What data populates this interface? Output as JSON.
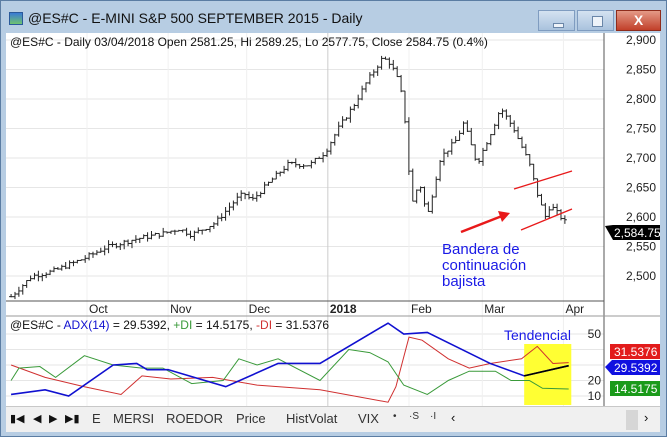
{
  "window": {
    "title": "@ES#C - E-MINI S&P 500 SEPTEMBER 2015 - Daily",
    "close_label": "X"
  },
  "price_panel": {
    "header": "@ES#C - Daily 03/04/2018 Open 2581.25, Hi 2589.25, Lo 2577.75, Close 2584.75 (0.4%)",
    "y_ticks": [
      "2,900",
      "2,850",
      "2,800",
      "2,750",
      "2,700",
      "2,650",
      "2,600",
      "2,550",
      "2,500"
    ],
    "last_price": "2,584.75",
    "annotation": [
      "Bandera de",
      "continuación",
      "bajista"
    ],
    "annotation_color": "#1a1ae6",
    "flag_color": "#e8191a"
  },
  "x_axis": {
    "labels": [
      "Oct",
      "Nov",
      "Dec",
      "2018",
      "Feb",
      "Mar",
      "Apr"
    ]
  },
  "indicator_panel": {
    "header_prefix": "@ES#C - ",
    "adx_label": "ADX(14)",
    "adx_value": " = 29.5392, ",
    "pdi_label": "+DI",
    "pdi_value": " = 14.5175, ",
    "mdi_label": "-DI",
    "mdi_value": " = 31.5376",
    "annotation": "Tendencial",
    "y_ticks": [
      "50",
      "20",
      "10"
    ],
    "tags": {
      "mdi": "31.5376",
      "adx": "29.5392",
      "pdi": "14.5175"
    },
    "colors": {
      "adx": "#1010d0",
      "pdi": "#3a9a3a",
      "mdi": "#d03030",
      "highlight": "#ffff33"
    }
  },
  "tabs": {
    "items": [
      "E",
      "MERSI",
      "ROEDOR",
      "Price",
      "HistVolat",
      "VIX"
    ],
    "small": [
      "•",
      "·S",
      "·I"
    ]
  },
  "chart_data": {
    "type": "line",
    "price": {
      "ylim": [
        2450,
        2910
      ],
      "last": {
        "date": "2018-04-03",
        "open": 2581.25,
        "high": 2589.25,
        "low": 2577.75,
        "close": 2584.75
      },
      "closes": [
        [
          "2017-09-02",
          2465
        ],
        [
          "2017-09-10",
          2500
        ],
        [
          "2017-09-18",
          2508
        ],
        [
          "2017-09-30",
          2530
        ],
        [
          "2017-10-08",
          2548
        ],
        [
          "2017-10-19",
          2562
        ],
        [
          "2017-10-30",
          2572
        ],
        [
          "2017-11-05",
          2580
        ],
        [
          "2017-11-10",
          2570
        ],
        [
          "2017-11-19",
          2590
        ],
        [
          "2017-11-27",
          2630
        ],
        [
          "2017-11-30",
          2640
        ],
        [
          "2017-12-03",
          2628
        ],
        [
          "2017-12-11",
          2665
        ],
        [
          "2017-12-17",
          2690
        ],
        [
          "2017-12-25",
          2688
        ],
        [
          "2017-12-31",
          2710
        ],
        [
          "2018-01-05",
          2750
        ],
        [
          "2018-01-11",
          2790
        ],
        [
          "2018-01-16",
          2830
        ],
        [
          "2018-01-22",
          2870
        ],
        [
          "2018-01-25",
          2860
        ],
        [
          "2018-01-28",
          2830
        ],
        [
          "2018-01-30",
          2790
        ],
        [
          "2018-02-02",
          2620
        ],
        [
          "2018-02-05",
          2660
        ],
        [
          "2018-02-08",
          2600
        ],
        [
          "2018-02-13",
          2700
        ],
        [
          "2018-02-19",
          2730
        ],
        [
          "2018-02-22",
          2760
        ],
        [
          "2018-02-27",
          2690
        ],
        [
          "2018-03-05",
          2750
        ],
        [
          "2018-03-08",
          2785
        ],
        [
          "2018-03-13",
          2750
        ],
        [
          "2018-03-19",
          2690
        ],
        [
          "2018-03-22",
          2640
        ],
        [
          "2018-03-25",
          2600
        ],
        [
          "2018-03-27",
          2620
        ],
        [
          "2018-04-03",
          2584.75
        ]
      ]
    },
    "adx": {
      "ylim": [
        3,
        58
      ],
      "adx": [
        [
          "2017-09-02",
          11
        ],
        [
          "2017-09-15",
          14
        ],
        [
          "2017-09-24",
          10
        ],
        [
          "2017-10-11",
          30
        ],
        [
          "2017-10-20",
          31
        ],
        [
          "2017-10-24",
          27
        ],
        [
          "2017-11-01",
          27
        ],
        [
          "2017-11-23",
          16
        ],
        [
          "2017-12-13",
          31
        ],
        [
          "2017-12-29",
          31
        ],
        [
          "2018-01-24",
          57
        ],
        [
          "2018-01-30",
          50
        ],
        [
          "2018-02-08",
          51
        ],
        [
          "2018-03-04",
          31
        ],
        [
          "2018-03-17",
          23
        ],
        [
          "2018-04-03",
          29.5392
        ]
      ],
      "pdi": [
        [
          "2017-09-02",
          20
        ],
        [
          "2017-09-05",
          28
        ],
        [
          "2017-09-13",
          29
        ],
        [
          "2017-09-19",
          22
        ],
        [
          "2017-09-30",
          36
        ],
        [
          "2017-10-11",
          30
        ],
        [
          "2017-10-22",
          28
        ],
        [
          "2017-10-30",
          28
        ],
        [
          "2017-11-10",
          18
        ],
        [
          "2017-11-22",
          20
        ],
        [
          "2017-11-28",
          34
        ],
        [
          "2017-12-05",
          30
        ],
        [
          "2017-12-13",
          34
        ],
        [
          "2017-12-29",
          20
        ],
        [
          "2018-01-09",
          40
        ],
        [
          "2018-01-17",
          38
        ],
        [
          "2018-01-24",
          32
        ],
        [
          "2018-01-30",
          17
        ],
        [
          "2018-02-08",
          11
        ],
        [
          "2018-02-16",
          20
        ],
        [
          "2018-02-24",
          26
        ],
        [
          "2018-03-06",
          26
        ],
        [
          "2018-03-12",
          20
        ],
        [
          "2018-03-19",
          20
        ],
        [
          "2018-03-24",
          15
        ],
        [
          "2018-04-03",
          14.5175
        ]
      ],
      "mdi": [
        [
          "2017-09-02",
          30
        ],
        [
          "2017-09-15",
          22
        ],
        [
          "2017-09-30",
          16
        ],
        [
          "2017-10-14",
          11
        ],
        [
          "2017-10-22",
          23
        ],
        [
          "2017-11-02",
          21
        ],
        [
          "2017-11-18",
          22
        ],
        [
          "2017-12-05",
          17
        ],
        [
          "2017-12-29",
          14
        ],
        [
          "2018-01-24",
          6
        ],
        [
          "2018-01-27",
          16
        ],
        [
          "2018-02-01",
          48
        ],
        [
          "2018-02-06",
          46
        ],
        [
          "2018-02-16",
          34
        ],
        [
          "2018-02-24",
          28
        ],
        [
          "2018-03-04",
          31
        ],
        [
          "2018-03-16",
          34
        ],
        [
          "2018-03-22",
          42
        ],
        [
          "2018-03-28",
          31
        ],
        [
          "2018-04-03",
          31.5376
        ]
      ],
      "highlight_range": [
        "2018-03-17",
        "2018-04-04"
      ]
    }
  }
}
